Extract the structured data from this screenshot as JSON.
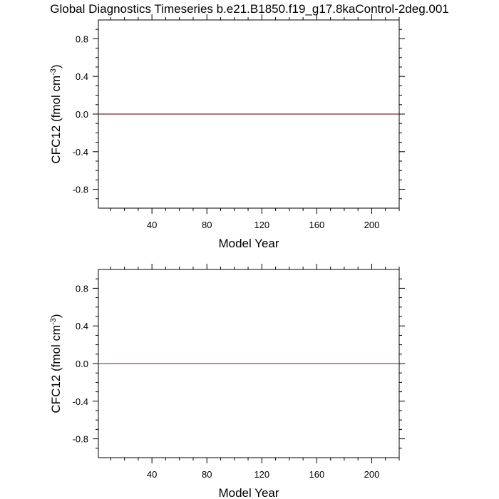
{
  "chart_data": [
    {
      "type": "line",
      "title": "Global Diagnostics Timeseries b.e21.B1850.f19_g17.8kaControl-2deg.001",
      "xlabel": "Model Year",
      "ylabel_parts": [
        "CFC12 (fmol cm",
        "-3",
        ")"
      ],
      "x": [
        1,
        220
      ],
      "values": [
        0,
        0
      ],
      "color": "#7a2a2a",
      "xlim": [
        1,
        220
      ],
      "xticks": [
        40,
        80,
        120,
        160,
        200
      ],
      "xminorticks": [
        10,
        20,
        30,
        50,
        60,
        70,
        90,
        100,
        110,
        130,
        140,
        150,
        170,
        180,
        190,
        210,
        220
      ],
      "ylim": [
        -1,
        1
      ],
      "yticks": [
        -0.8,
        -0.4,
        {
          "value": 0,
          "label": "0.0"
        },
        0.4,
        0.8
      ],
      "yminorticks": [
        -0.9,
        -0.7,
        -0.6,
        -0.5,
        -0.3,
        -0.2,
        -0.1,
        0.1,
        0.2,
        0.3,
        0.5,
        0.6,
        0.7,
        0.9
      ]
    },
    {
      "type": "line",
      "xlabel": "Model Year",
      "ylabel_parts": [
        "CFC12 (fmol cm",
        "-3",
        ")"
      ],
      "x": [
        1,
        220
      ],
      "values": [
        0,
        0
      ],
      "color": "#9a4a4a",
      "xlim": [
        1,
        220
      ],
      "xticks": [
        40,
        80,
        120,
        160,
        200
      ],
      "xminorticks": [
        10,
        20,
        30,
        50,
        60,
        70,
        90,
        100,
        110,
        130,
        140,
        150,
        170,
        180,
        190,
        210,
        220
      ],
      "ylim": [
        -1,
        1
      ],
      "yticks": [
        -0.8,
        -0.4,
        {
          "value": 0,
          "label": "0.0"
        },
        0.4,
        0.8
      ],
      "yminorticks": [
        -0.9,
        -0.7,
        -0.6,
        -0.5,
        -0.3,
        -0.2,
        -0.1,
        0.1,
        0.2,
        0.3,
        0.5,
        0.6,
        0.7,
        0.9
      ]
    }
  ]
}
